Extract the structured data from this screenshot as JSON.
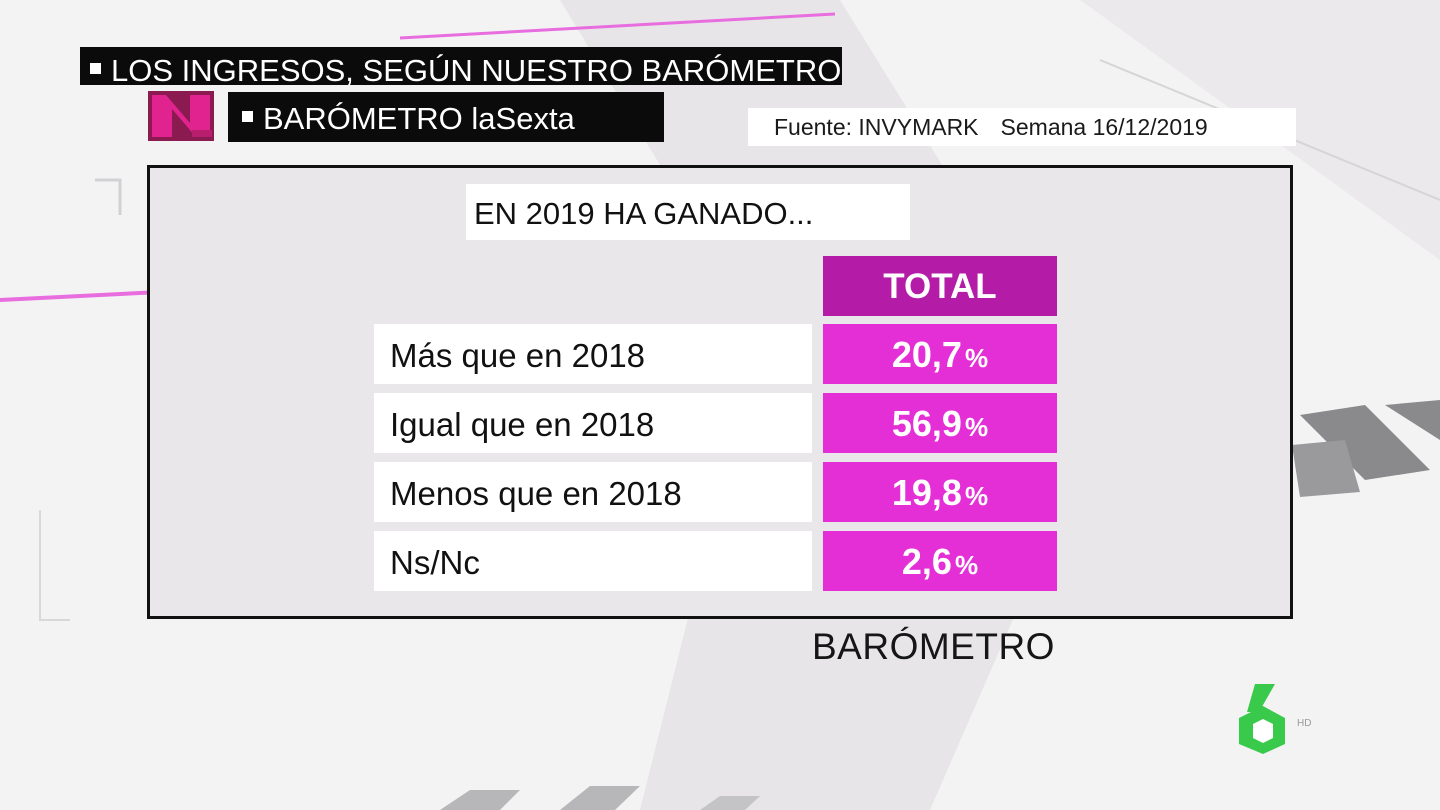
{
  "colors": {
    "background": "#f4f3f4",
    "ticker_bg": "#0b0b0b",
    "panel_bg": "#e9e7ea",
    "header_bg": "#b41ba7",
    "value_bg": "#e42fd6",
    "logo_green": "#39c94b"
  },
  "ticker": {
    "headline": "LOS INGRESOS, SEGÚN NUESTRO BARÓMETRO",
    "section": "BARÓMETRO laSexta"
  },
  "source": {
    "fuente": "Fuente: INVYMARK",
    "semana": "Semana 16/12/2019"
  },
  "logos": {
    "channel": "laSexta-6-logo",
    "brand": "laSexta-noticias-N-logo"
  },
  "chart_data": {
    "type": "table",
    "title": "EN 2019 HA GANADO...",
    "column_header": "TOTAL",
    "unit": "%",
    "rows": [
      {
        "label": "Más que en 2018",
        "value": 20.7,
        "display": "20,7"
      },
      {
        "label": "Igual que en 2018",
        "value": 56.9,
        "display": "56,9"
      },
      {
        "label": "Menos que en 2018",
        "value": 19.8,
        "display": "19,8"
      },
      {
        "label": "Ns/Nc",
        "value": 2.6,
        "display": "2,6"
      }
    ]
  },
  "footer": {
    "label": "BARÓMETRO"
  }
}
